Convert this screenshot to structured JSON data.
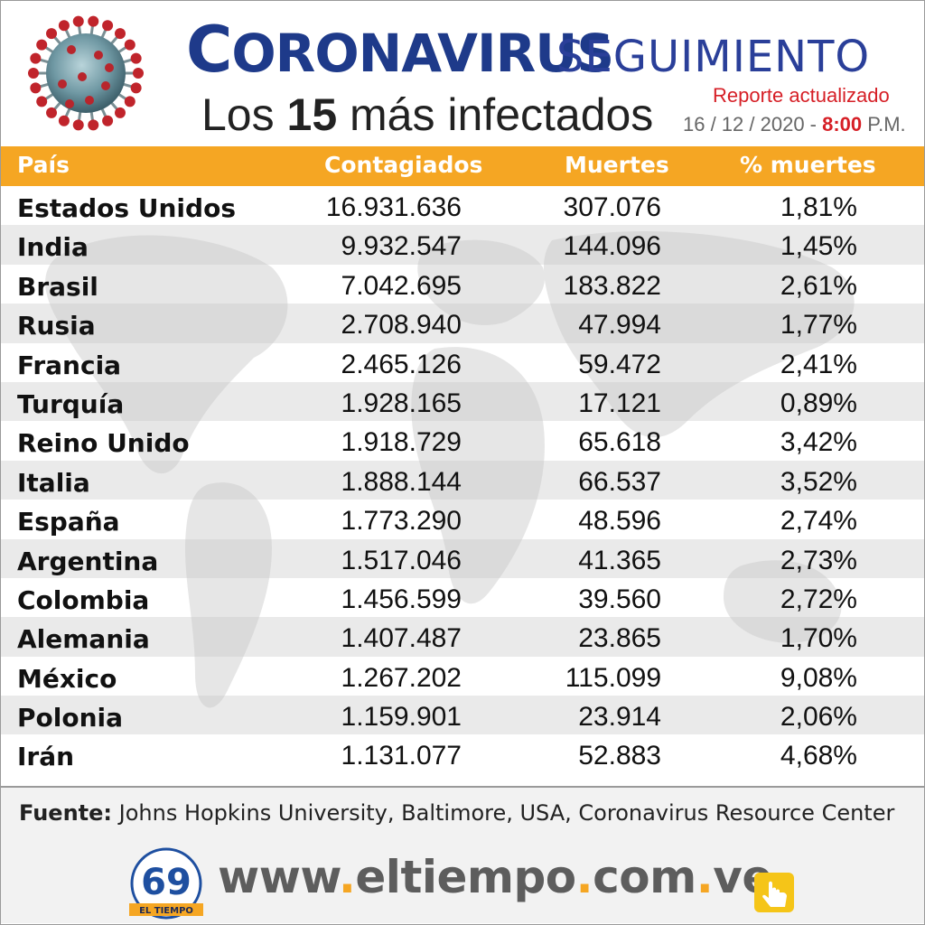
{
  "header": {
    "title_first": "C",
    "title_rest": "ORONAVIRUS",
    "title_sub": "SEGUIMIENTO",
    "subtitle_prefix": "Los ",
    "subtitle_num": "15",
    "subtitle_suffix": " más infectados",
    "report_label": "Reporte actualizado",
    "report_date": "16 / 12 / 2020 - ",
    "report_time": "8:00",
    "report_ampm": " P.M."
  },
  "colors": {
    "header_band": "#f5a623",
    "title_blue": "#1e3a8a",
    "accent_red": "#d61f26"
  },
  "chart_data": {
    "type": "table",
    "columns": [
      "País",
      "Contagiados",
      "Muertes",
      "% muertes"
    ],
    "rows": [
      [
        "Estados Unidos",
        "16.931.636",
        "307.076",
        "1,81%"
      ],
      [
        "India",
        "9.932.547",
        "144.096",
        "1,45%"
      ],
      [
        "Brasil",
        "7.042.695",
        "183.822",
        "2,61%"
      ],
      [
        "Rusia",
        "2.708.940",
        "47.994",
        "1,77%"
      ],
      [
        "Francia",
        "2.465.126",
        "59.472",
        "2,41%"
      ],
      [
        "Turquía",
        "1.928.165",
        "17.121",
        "0,89%"
      ],
      [
        "Reino Unido",
        "1.918.729",
        "65.618",
        "3,42%"
      ],
      [
        "Italia",
        "1.888.144",
        "66.537",
        "3,52%"
      ],
      [
        "España",
        "1.773.290",
        "48.596",
        "2,74%"
      ],
      [
        "Argentina",
        "1.517.046",
        "41.365",
        "2,73%"
      ],
      [
        "Colombia",
        "1.456.599",
        "39.560",
        "2,72%"
      ],
      [
        "Alemania",
        "1.407.487",
        "23.865",
        "1,70%"
      ],
      [
        "México",
        "1.267.202",
        "115.099",
        "9,08%"
      ],
      [
        "Polonia",
        "1.159.901",
        "23.914",
        "2,06%"
      ],
      [
        "Irán",
        "1.131.077",
        "52.883",
        "4,68%"
      ]
    ]
  },
  "source": {
    "label": "Fuente:",
    "text": " Johns Hopkins University, Baltimore, USA, Coronavirus Resource Center"
  },
  "footer": {
    "logo_number": "69",
    "logo_name": "EL TIEMPO",
    "url_parts": [
      "www",
      ".",
      "eltiempo",
      ".",
      "com",
      ".",
      "ve"
    ],
    "icons": [
      "virus-icon",
      "newspaper-logo-icon",
      "hand-pointer-icon"
    ]
  }
}
